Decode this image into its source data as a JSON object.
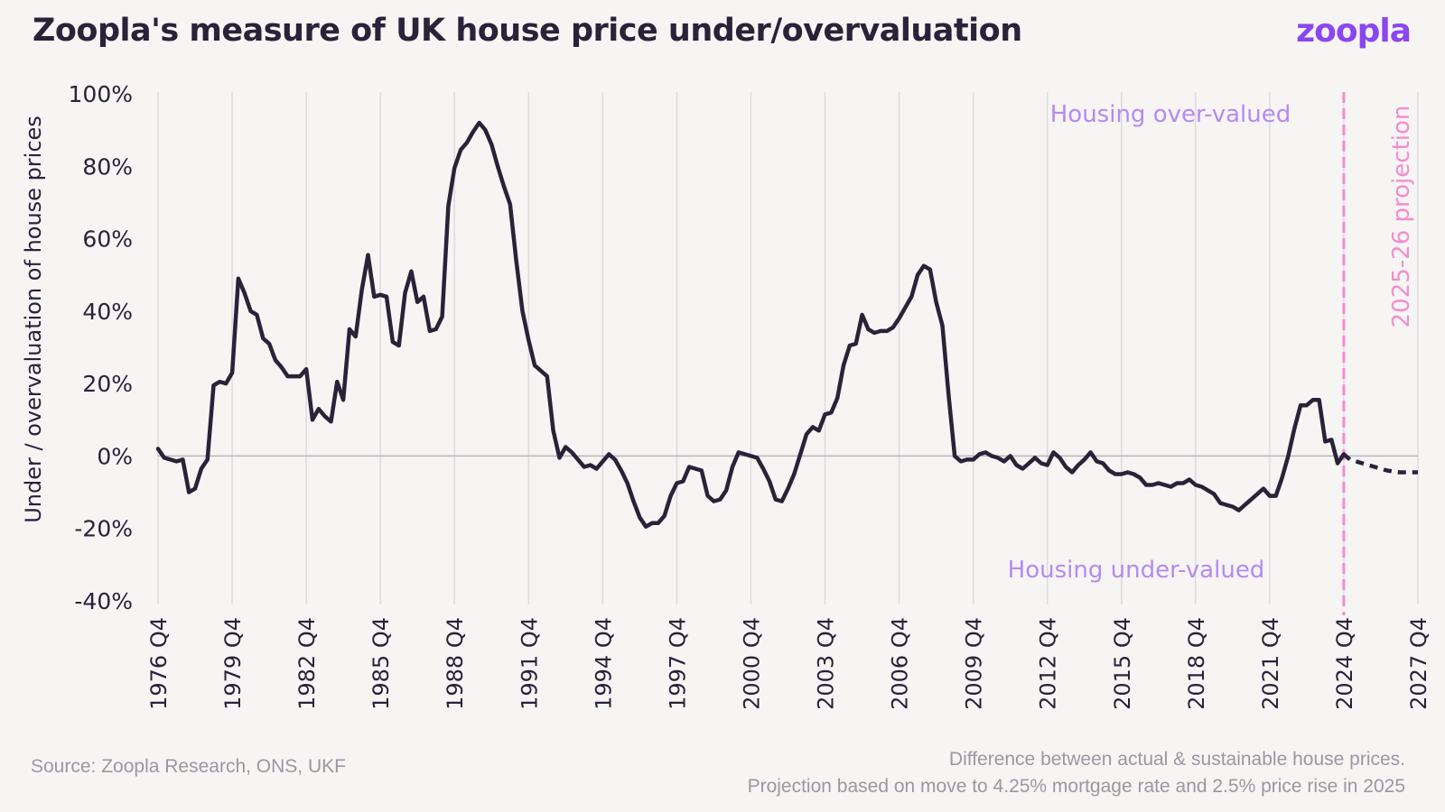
{
  "header": {
    "title": "Zoopla's measure of UK house price under/overvaluation",
    "logo": "zoopla"
  },
  "footer": {
    "source": "Source: Zoopla Research, ONS, UKF",
    "note_line1": "Difference between actual & sustainable house prices.",
    "note_line2": "Projection based on move to 4.25% mortgage rate and 2.5% price rise in 2025"
  },
  "colors": {
    "line": "#2a2238",
    "projection_marker": "#f58bd0",
    "annotation": "#b58af0",
    "grid": "#dcdbdf",
    "zero_line": "#b5b4ba",
    "logo": "#8b46f0"
  },
  "chart_data": {
    "type": "line",
    "title": "Zoopla's measure of UK house price under/overvaluation",
    "ylabel": "Under / overvaluation of house prices",
    "xlabel": "",
    "ylim": [
      -40,
      100
    ],
    "y_ticks": [
      100,
      80,
      60,
      40,
      20,
      0,
      -20,
      -40
    ],
    "y_tick_labels": [
      "100%",
      "80%",
      "60%",
      "40%",
      "20%",
      "0%",
      "-20%",
      "-40%"
    ],
    "x_range": [
      1976.75,
      2027.75
    ],
    "x_ticks": [
      1976.75,
      1979.75,
      1982.75,
      1985.75,
      1988.75,
      1991.75,
      1994.75,
      1997.75,
      2000.75,
      2003.75,
      2006.75,
      2009.75,
      2012.75,
      2015.75,
      2018.75,
      2021.75,
      2024.75,
      2027.75
    ],
    "x_tick_labels": [
      "1976 Q4",
      "1979 Q4",
      "1982 Q4",
      "1985 Q4",
      "1988 Q4",
      "1991 Q4",
      "1994 Q4",
      "1997 Q4",
      "2000 Q4",
      "2003 Q4",
      "2006 Q4",
      "2009 Q4",
      "2012 Q4",
      "2015 Q4",
      "2018 Q4",
      "2021 Q4",
      "2024 Q4",
      "2027 Q4"
    ],
    "grid": "vertical",
    "series": [
      {
        "style": "solid",
        "points": [
          [
            1976.75,
            2
          ],
          [
            1977.0,
            -0.5
          ],
          [
            1977.25,
            -1
          ],
          [
            1977.5,
            -1.5
          ],
          [
            1977.75,
            -1
          ],
          [
            1978.0,
            -10
          ],
          [
            1978.25,
            -9
          ],
          [
            1978.5,
            -3.5
          ],
          [
            1978.75,
            -1
          ],
          [
            1979.0,
            19.5
          ],
          [
            1979.25,
            20.5
          ],
          [
            1979.5,
            20
          ],
          [
            1979.75,
            23
          ],
          [
            1980.0,
            49
          ],
          [
            1980.25,
            45
          ],
          [
            1980.5,
            40
          ],
          [
            1980.75,
            39
          ],
          [
            1981.0,
            32.5
          ],
          [
            1981.25,
            31
          ],
          [
            1981.5,
            26.5
          ],
          [
            1981.75,
            24.5
          ],
          [
            1982.0,
            22
          ],
          [
            1982.25,
            22
          ],
          [
            1982.5,
            22
          ],
          [
            1982.75,
            24
          ],
          [
            1983.0,
            10
          ],
          [
            1983.25,
            13
          ],
          [
            1983.5,
            11
          ],
          [
            1983.75,
            9.5
          ],
          [
            1984.0,
            20.5
          ],
          [
            1984.25,
            15.5
          ],
          [
            1984.5,
            35
          ],
          [
            1984.75,
            33
          ],
          [
            1985.0,
            46
          ],
          [
            1985.25,
            55.5
          ],
          [
            1985.5,
            44
          ],
          [
            1985.75,
            44.5
          ],
          [
            1986.0,
            44
          ],
          [
            1986.25,
            31.5
          ],
          [
            1986.5,
            30.5
          ],
          [
            1986.75,
            45
          ],
          [
            1987.0,
            51
          ],
          [
            1987.25,
            42.5
          ],
          [
            1987.5,
            44
          ],
          [
            1987.75,
            34.5
          ],
          [
            1988.0,
            35
          ],
          [
            1988.25,
            38.5
          ],
          [
            1988.5,
            69
          ],
          [
            1988.75,
            79.5
          ],
          [
            1989.0,
            84.5
          ],
          [
            1989.25,
            86.5
          ],
          [
            1989.5,
            89.5
          ],
          [
            1989.75,
            92
          ],
          [
            1990.0,
            90
          ],
          [
            1990.25,
            86
          ],
          [
            1990.5,
            80
          ],
          [
            1990.75,
            74.5
          ],
          [
            1991.0,
            69.5
          ],
          [
            1991.25,
            54
          ],
          [
            1991.5,
            40
          ],
          [
            1991.75,
            32
          ],
          [
            1992.0,
            25
          ],
          [
            1992.25,
            23.5
          ],
          [
            1992.5,
            22
          ],
          [
            1992.75,
            7
          ],
          [
            1993.0,
            -0.5
          ],
          [
            1993.25,
            2.5
          ],
          [
            1993.5,
            1
          ],
          [
            1993.75,
            -1
          ],
          [
            1994.0,
            -3
          ],
          [
            1994.25,
            -2.5
          ],
          [
            1994.5,
            -3.5
          ],
          [
            1994.75,
            -1.5
          ],
          [
            1995.0,
            0.5
          ],
          [
            1995.25,
            -1
          ],
          [
            1995.5,
            -4
          ],
          [
            1995.75,
            -7.5
          ],
          [
            1996.0,
            -12.5
          ],
          [
            1996.25,
            -17
          ],
          [
            1996.5,
            -19.5
          ],
          [
            1996.75,
            -18.5
          ],
          [
            1997.0,
            -18.5
          ],
          [
            1997.25,
            -16.5
          ],
          [
            1997.5,
            -11
          ],
          [
            1997.75,
            -7.5
          ],
          [
            1998.0,
            -7
          ],
          [
            1998.25,
            -3
          ],
          [
            1998.5,
            -3.5
          ],
          [
            1998.75,
            -4
          ],
          [
            1999.0,
            -11
          ],
          [
            1999.25,
            -12.5
          ],
          [
            1999.5,
            -12
          ],
          [
            1999.75,
            -9.5
          ],
          [
            2000.0,
            -3
          ],
          [
            2000.25,
            1
          ],
          [
            2000.5,
            0.5
          ],
          [
            2000.75,
            0
          ],
          [
            2001.0,
            -0.5
          ],
          [
            2001.25,
            -3.5
          ],
          [
            2001.5,
            -7
          ],
          [
            2001.75,
            -12
          ],
          [
            2002.0,
            -12.5
          ],
          [
            2002.25,
            -9
          ],
          [
            2002.5,
            -5
          ],
          [
            2002.75,
            0.5
          ],
          [
            2003.0,
            6
          ],
          [
            2003.25,
            8
          ],
          [
            2003.5,
            7
          ],
          [
            2003.75,
            11.5
          ],
          [
            2004.0,
            12
          ],
          [
            2004.25,
            16
          ],
          [
            2004.5,
            25
          ],
          [
            2004.75,
            30.5
          ],
          [
            2005.0,
            31
          ],
          [
            2005.25,
            39
          ],
          [
            2005.5,
            35
          ],
          [
            2005.75,
            34
          ],
          [
            2006.0,
            34.5
          ],
          [
            2006.25,
            34.5
          ],
          [
            2006.5,
            35.5
          ],
          [
            2006.75,
            38
          ],
          [
            2007.0,
            41
          ],
          [
            2007.25,
            44
          ],
          [
            2007.5,
            50
          ],
          [
            2007.75,
            52.5
          ],
          [
            2008.0,
            51.5
          ],
          [
            2008.25,
            42.5
          ],
          [
            2008.5,
            36
          ],
          [
            2008.75,
            17
          ],
          [
            2009.0,
            0
          ],
          [
            2009.25,
            -1.5
          ],
          [
            2009.5,
            -1
          ],
          [
            2009.75,
            -1
          ],
          [
            2010.0,
            0.5
          ],
          [
            2010.25,
            1
          ],
          [
            2010.5,
            0
          ],
          [
            2010.75,
            -0.5
          ],
          [
            2011.0,
            -1.5
          ],
          [
            2011.25,
            0
          ],
          [
            2011.5,
            -2.5
          ],
          [
            2011.75,
            -3.5
          ],
          [
            2012.0,
            -2
          ],
          [
            2012.25,
            -0.5
          ],
          [
            2012.5,
            -2
          ],
          [
            2012.75,
            -2.5
          ],
          [
            2013.0,
            1
          ],
          [
            2013.25,
            -0.5
          ],
          [
            2013.5,
            -3
          ],
          [
            2013.75,
            -4.5
          ],
          [
            2014.0,
            -2.5
          ],
          [
            2014.25,
            -1
          ],
          [
            2014.5,
            1
          ],
          [
            2014.75,
            -1.5
          ],
          [
            2015.0,
            -2
          ],
          [
            2015.25,
            -4
          ],
          [
            2015.5,
            -5
          ],
          [
            2015.75,
            -5
          ],
          [
            2016.0,
            -4.5
          ],
          [
            2016.25,
            -5
          ],
          [
            2016.5,
            -6
          ],
          [
            2016.75,
            -8
          ],
          [
            2017.0,
            -8
          ],
          [
            2017.25,
            -7.5
          ],
          [
            2017.5,
            -8
          ],
          [
            2017.75,
            -8.5
          ],
          [
            2018.0,
            -7.5
          ],
          [
            2018.25,
            -7.5
          ],
          [
            2018.5,
            -6.5
          ],
          [
            2018.75,
            -8
          ],
          [
            2019.0,
            -8.5
          ],
          [
            2019.25,
            -9.5
          ],
          [
            2019.5,
            -10.5
          ],
          [
            2019.75,
            -13
          ],
          [
            2020.0,
            -13.5
          ],
          [
            2020.25,
            -14
          ],
          [
            2020.5,
            -15
          ],
          [
            2020.75,
            -13.5
          ],
          [
            2021.0,
            -12
          ],
          [
            2021.25,
            -10.5
          ],
          [
            2021.5,
            -9
          ],
          [
            2021.75,
            -11
          ],
          [
            2022.0,
            -11
          ],
          [
            2022.25,
            -6
          ],
          [
            2022.5,
            0
          ],
          [
            2022.75,
            7.5
          ],
          [
            2023.0,
            14
          ],
          [
            2023.25,
            14
          ],
          [
            2023.5,
            15.5
          ],
          [
            2023.75,
            15.5
          ],
          [
            2024.0,
            4
          ],
          [
            2024.25,
            4.5
          ],
          [
            2024.5,
            -2
          ],
          [
            2024.75,
            0.5
          ]
        ]
      },
      {
        "style": "dashed",
        "points": [
          [
            2024.75,
            0.5
          ],
          [
            2025.0,
            -1
          ],
          [
            2025.5,
            -2
          ],
          [
            2026.0,
            -3
          ],
          [
            2026.5,
            -4
          ],
          [
            2027.0,
            -4.5
          ],
          [
            2027.75,
            -4.5
          ]
        ]
      }
    ],
    "annotations": {
      "over": "Housing over-valued",
      "under": "Housing under-valued",
      "projection": "2025-26 projection"
    },
    "projection_start": 2024.75
  }
}
